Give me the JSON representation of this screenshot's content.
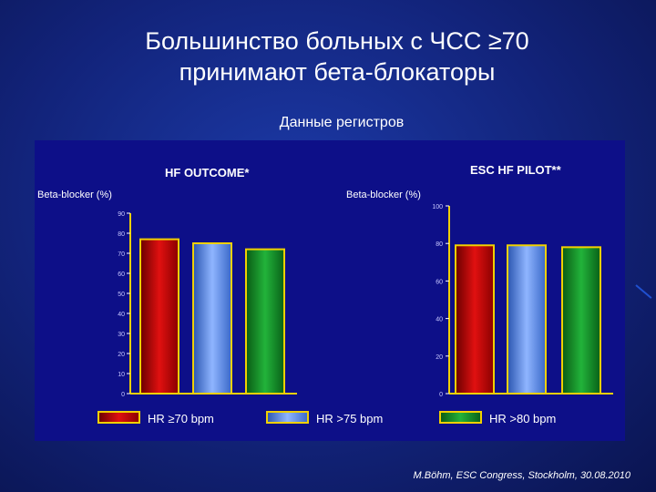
{
  "title_line1": "Большинство больных с ЧСС ≥70",
  "title_line2": "принимают бета-блокаторы",
  "subtitle": "Данные регистров",
  "citation": "M.Böhm, ESC Congress, Stockholm, 30.08.2010",
  "colors": {
    "hr70": "#cc0000",
    "hr75": "#5b8fe8",
    "hr80": "#0f8a22",
    "axis": "#f0d000",
    "panel": "#0d0f88"
  },
  "legend": [
    {
      "label": "HR ≥70 bpm",
      "color_key": "hr70"
    },
    {
      "label": "HR >75 bpm",
      "color_key": "hr75"
    },
    {
      "label": "HR >80 bpm",
      "color_key": "hr80"
    }
  ],
  "chart_data": [
    {
      "type": "bar",
      "title": "HF OUTCOME*",
      "ylabel": "Beta-blocker (%)",
      "ylim": [
        0,
        90
      ],
      "yticks": [
        0,
        10,
        20,
        30,
        40,
        50,
        60,
        70,
        80,
        90
      ],
      "ytick_labels": [
        "0",
        "10",
        "20",
        "30",
        "40",
        "50",
        "60",
        "70",
        "80",
        "90"
      ],
      "categories": [
        "HR ≥70 bpm",
        "HR >75 bpm",
        "HR >80 bpm"
      ],
      "values": [
        77,
        75,
        72
      ]
    },
    {
      "type": "bar",
      "title": "ESC HF PILOT**",
      "ylabel": "Beta-blocker (%)",
      "ylim": [
        0,
        100
      ],
      "yticks": [
        0,
        20,
        40,
        60,
        80,
        100
      ],
      "ytick_labels": [
        "0",
        "20",
        "40",
        "60",
        "80",
        "100"
      ],
      "categories": [
        "HR ≥70 bpm",
        "HR >75 bpm",
        "HR >80 bpm"
      ],
      "values": [
        79,
        79,
        78
      ]
    }
  ]
}
